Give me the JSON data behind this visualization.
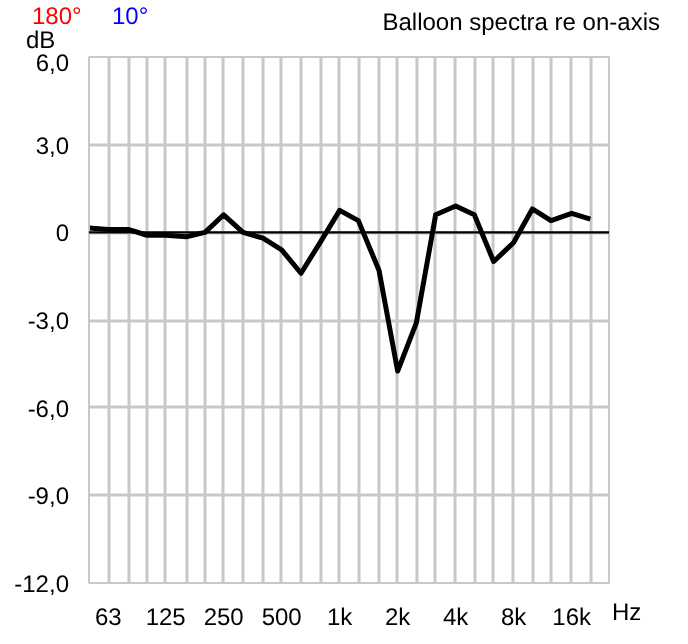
{
  "chart_data": {
    "type": "line",
    "title": "Balloon spectra re on-axis",
    "xlabel": "Hz",
    "ylabel": "dB",
    "annotations": [
      "180°",
      "10°"
    ],
    "log": "x",
    "grid": true,
    "line_style": "solid",
    "x": [
      50,
      63,
      80,
      100,
      125,
      160,
      200,
      250,
      315,
      400,
      500,
      630,
      800,
      1000,
      1250,
      1600,
      2000,
      2500,
      3150,
      4000,
      5000,
      6300,
      8000,
      10000,
      12500,
      16000,
      20000
    ],
    "series": [
      {
        "color": "#000000",
        "values": [
          0.15,
          0.1,
          0.1,
          -0.1,
          -0.1,
          -0.15,
          0.0,
          0.6,
          0.0,
          -0.2,
          -0.6,
          -1.4,
          -0.3,
          0.75,
          0.4,
          -1.3,
          -4.75,
          -3.1,
          0.6,
          0.9,
          0.6,
          -1.0,
          -0.35,
          0.8,
          0.4,
          0.65,
          0.45
        ]
      }
    ],
    "xlim": [
      50,
      25000
    ],
    "xticks": [
      {
        "value": 50,
        "label": null
      },
      63,
      {
        "value": 80,
        "label": null
      },
      {
        "value": 100,
        "label": null
      },
      125,
      {
        "value": 160,
        "label": null
      },
      {
        "value": 200,
        "label": null
      },
      250,
      {
        "value": 315,
        "label": null
      },
      {
        "value": 400,
        "label": null
      },
      500,
      {
        "value": 630,
        "label": null
      },
      {
        "value": 800,
        "label": null
      },
      {
        "value": 1000,
        "label": "1k"
      },
      {
        "value": 1250,
        "label": null
      },
      {
        "value": 1600,
        "label": null
      },
      {
        "value": 2000,
        "label": "2k"
      },
      {
        "value": 2500,
        "label": null
      },
      {
        "value": 3150,
        "label": null
      },
      {
        "value": 4000,
        "label": "4k"
      },
      {
        "value": 5000,
        "label": null
      },
      {
        "value": 6300,
        "label": null
      },
      {
        "value": 8000,
        "label": "8k"
      },
      {
        "value": 10000,
        "label": null
      },
      {
        "value": 12500,
        "label": null
      },
      {
        "value": 16000,
        "label": "16k"
      },
      {
        "value": 20000,
        "label": null
      },
      {
        "value": 25000,
        "label": null
      }
    ],
    "ylim": [
      -12,
      6
    ],
    "yticks": [
      {
        "value": -12,
        "label": "-12,0"
      },
      {
        "value": -9,
        "label": "-9,0"
      },
      {
        "value": -6,
        "label": "-6,0"
      },
      {
        "value": -3,
        "label": "-3,0"
      },
      0,
      {
        "value": 3,
        "label": "3,0"
      },
      {
        "value": 6,
        "label": "6,0"
      }
    ],
    "ref_lines": [
      {
        "axis": "y",
        "value": 0,
        "label": null,
        "color": "#000000"
      }
    ]
  }
}
